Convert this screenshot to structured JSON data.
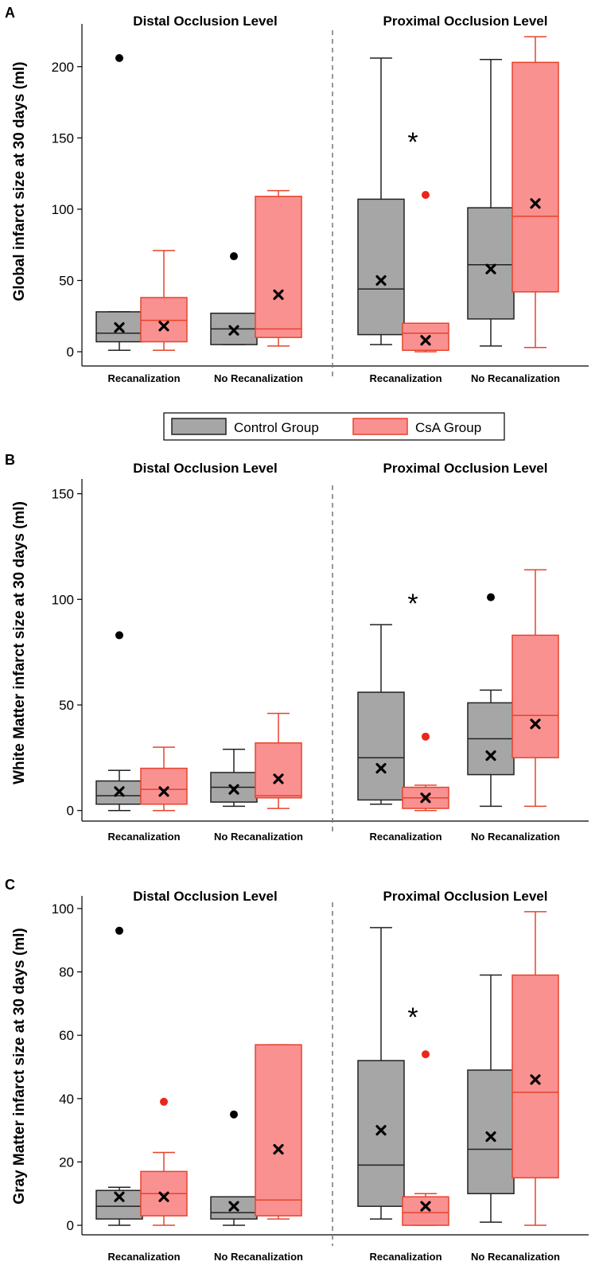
{
  "legend": {
    "items": [
      {
        "label": "Control Group",
        "fill": "#a6a6a6",
        "stroke": "#222222"
      },
      {
        "label": "CsA Group",
        "fill": "#f99191",
        "stroke": "#e8432c"
      }
    ]
  },
  "colors": {
    "control_fill": "#a6a6a6",
    "control_stroke": "#222222",
    "csa_fill": "#f99191",
    "csa_stroke": "#e8432c",
    "outlier_control": "#000000",
    "outlier_csa": "#e8271a",
    "divider": "#777777"
  },
  "chart_data": [
    {
      "type": "box",
      "panel": "A",
      "ylabel": "Global infarct size at 30 days (ml)",
      "ylim": [
        -10,
        230
      ],
      "yticks": [
        0,
        50,
        100,
        150,
        200
      ],
      "sections": [
        {
          "title": "Distal Occlusion Level",
          "categories": [
            "Recanalization",
            "No Recanalization"
          ]
        },
        {
          "title": "Proximal Occlusion Level",
          "categories": [
            "Recanalization",
            "No Recanalization"
          ]
        }
      ],
      "significance": [
        "*"
      ],
      "series": [
        {
          "name": "Control Group",
          "boxes": [
            {
              "whisker_low": 1,
              "q1": 7,
              "median": 13,
              "q3": 28,
              "whisker_high": 28,
              "mean": 17,
              "outliers": [
                206
              ]
            },
            {
              "whisker_low": 5,
              "q1": 5,
              "median": 16,
              "q3": 27,
              "whisker_high": 27,
              "mean": 15,
              "outliers": [
                67
              ]
            },
            {
              "whisker_low": 5,
              "q1": 12,
              "median": 44,
              "q3": 107,
              "whisker_high": 206,
              "mean": 50,
              "outliers": []
            },
            {
              "whisker_low": 4,
              "q1": 23,
              "median": 61,
              "q3": 101,
              "whisker_high": 205,
              "mean": 58,
              "outliers": []
            }
          ]
        },
        {
          "name": "CsA Group",
          "boxes": [
            {
              "whisker_low": 1,
              "q1": 7,
              "median": 22,
              "q3": 38,
              "whisker_high": 71,
              "mean": 18,
              "outliers": []
            },
            {
              "whisker_low": 4,
              "q1": 10,
              "median": 16,
              "q3": 109,
              "whisker_high": 113,
              "mean": 40,
              "outliers": []
            },
            {
              "whisker_low": 0,
              "q1": 1,
              "median": 13,
              "q3": 20,
              "whisker_high": 20,
              "mean": 8,
              "outliers": [
                110
              ]
            },
            {
              "whisker_low": 3,
              "q1": 42,
              "median": 95,
              "q3": 203,
              "whisker_high": 221,
              "mean": 104,
              "outliers": []
            }
          ]
        }
      ]
    },
    {
      "type": "box",
      "panel": "B",
      "ylabel": "White Matter infarct size at 30 days (ml)",
      "ylim": [
        -5,
        157
      ],
      "yticks": [
        0,
        50,
        100,
        150
      ],
      "sections": [
        {
          "title": "Distal Occlusion Level",
          "categories": [
            "Recanalization",
            "No Recanalization"
          ]
        },
        {
          "title": "Proximal Occlusion Level",
          "categories": [
            "Recanalization",
            "No Recanalization"
          ]
        }
      ],
      "significance": [
        "*"
      ],
      "series": [
        {
          "name": "Control Group",
          "boxes": [
            {
              "whisker_low": 0,
              "q1": 3,
              "median": 7,
              "q3": 14,
              "whisker_high": 19,
              "mean": 9,
              "outliers": [
                83
              ]
            },
            {
              "whisker_low": 2,
              "q1": 4,
              "median": 11,
              "q3": 18,
              "whisker_high": 29,
              "mean": 10,
              "outliers": []
            },
            {
              "whisker_low": 3,
              "q1": 5,
              "median": 25,
              "q3": 56,
              "whisker_high": 88,
              "mean": 20,
              "outliers": []
            },
            {
              "whisker_low": 2,
              "q1": 17,
              "median": 34,
              "q3": 51,
              "whisker_high": 57,
              "mean": 26,
              "outliers": [
                101
              ]
            }
          ]
        },
        {
          "name": "CsA Group",
          "boxes": [
            {
              "whisker_low": 0,
              "q1": 3,
              "median": 10,
              "q3": 20,
              "whisker_high": 30,
              "mean": 9,
              "outliers": []
            },
            {
              "whisker_low": 1,
              "q1": 6,
              "median": 7,
              "q3": 32,
              "whisker_high": 46,
              "mean": 15,
              "outliers": []
            },
            {
              "whisker_low": 0,
              "q1": 1,
              "median": 6,
              "q3": 11,
              "whisker_high": 12,
              "mean": 6,
              "outliers": [
                35
              ]
            },
            {
              "whisker_low": 2,
              "q1": 25,
              "median": 45,
              "q3": 83,
              "whisker_high": 114,
              "mean": 41,
              "outliers": []
            }
          ]
        }
      ]
    },
    {
      "type": "box",
      "panel": "C",
      "ylabel": "Gray Matter infarct size at 30 days (ml)",
      "ylim": [
        -3,
        104
      ],
      "yticks": [
        0,
        20,
        40,
        60,
        80,
        100
      ],
      "sections": [
        {
          "title": "Distal Occlusion Level",
          "categories": [
            "Recanalization",
            "No Recanalization"
          ]
        },
        {
          "title": "Proximal Occlusion Level",
          "categories": [
            "Recanalization",
            "No Recanalization"
          ]
        }
      ],
      "significance": [
        "*"
      ],
      "series": [
        {
          "name": "Control Group",
          "boxes": [
            {
              "whisker_low": 0,
              "q1": 2,
              "median": 6,
              "q3": 11,
              "whisker_high": 12,
              "mean": 9,
              "outliers": [
                93
              ]
            },
            {
              "whisker_low": 0,
              "q1": 2,
              "median": 4,
              "q3": 9,
              "whisker_high": 9,
              "mean": 6,
              "outliers": [
                35
              ]
            },
            {
              "whisker_low": 2,
              "q1": 6,
              "median": 19,
              "q3": 52,
              "whisker_high": 94,
              "mean": 30,
              "outliers": []
            },
            {
              "whisker_low": 1,
              "q1": 10,
              "median": 24,
              "q3": 49,
              "whisker_high": 79,
              "mean": 28,
              "outliers": []
            }
          ]
        },
        {
          "name": "CsA Group",
          "boxes": [
            {
              "whisker_low": 0,
              "q1": 3,
              "median": 10,
              "q3": 17,
              "whisker_high": 23,
              "mean": 9,
              "outliers": [
                39
              ]
            },
            {
              "whisker_low": 2,
              "q1": 3,
              "median": 8,
              "q3": 57,
              "whisker_high": 57,
              "mean": 24,
              "outliers": []
            },
            {
              "whisker_low": 0,
              "q1": 0,
              "median": 4,
              "q3": 9,
              "whisker_high": 10,
              "mean": 6,
              "outliers": [
                54
              ]
            },
            {
              "whisker_low": 0,
              "q1": 15,
              "median": 42,
              "q3": 79,
              "whisker_high": 99,
              "mean": 46,
              "outliers": []
            }
          ]
        }
      ]
    }
  ]
}
